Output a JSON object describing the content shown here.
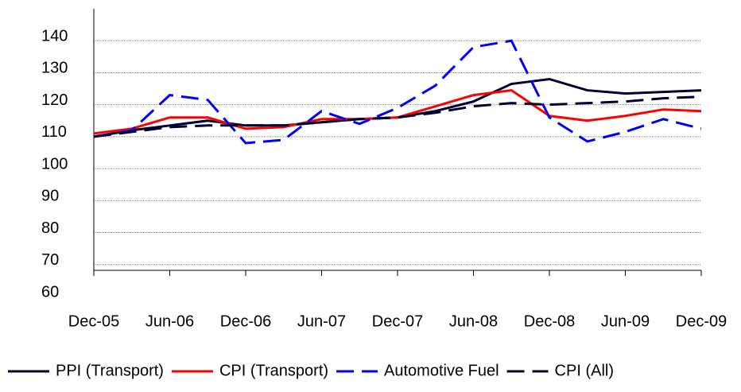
{
  "chart_data": {
    "type": "line",
    "x": [
      "Dec-05",
      null,
      "Jun-06",
      null,
      "Dec-06",
      null,
      "Jun-07",
      null,
      "Dec-07",
      null,
      "Jun-08",
      null,
      "Dec-08",
      null,
      "Jun-09",
      null,
      "Dec-09"
    ],
    "ylim": [
      60,
      150
    ],
    "yticks": [
      60,
      70,
      80,
      90,
      100,
      110,
      120,
      130,
      140
    ],
    "grid": true,
    "legend": "bottom",
    "series": [
      {
        "name": "PPI (Transport)",
        "color": "#000033",
        "dash": "solid",
        "values": [
          110,
          112,
          113.5,
          115,
          113.5,
          113.5,
          114.5,
          115.5,
          116,
          118,
          121,
          126.5,
          128,
          124.5,
          123.5,
          124,
          124.5
        ]
      },
      {
        "name": "CPI (Transport)",
        "color": "#ff0000",
        "dash": "solid",
        "values": [
          111,
          112.5,
          116,
          116,
          112.5,
          113,
          115.5,
          115.5,
          116,
          119.5,
          123,
          124.5,
          116.5,
          115,
          116.5,
          118.5,
          118
        ]
      },
      {
        "name": "Automotive Fuel",
        "color": "#0000ff",
        "dash": "dashed",
        "values": [
          110,
          112,
          123,
          121.5,
          108,
          109,
          118,
          114,
          119,
          126,
          138,
          140,
          116,
          108.5,
          111.5,
          115.5,
          112.5
        ]
      },
      {
        "name": "CPI (All)",
        "color": "#000033",
        "dash": "dashed",
        "values": [
          110,
          111.5,
          113,
          113.5,
          113.5,
          113.5,
          114.5,
          115.5,
          116,
          117.5,
          119.5,
          120.5,
          120,
          120.5,
          121,
          122,
          122.5
        ]
      }
    ]
  }
}
